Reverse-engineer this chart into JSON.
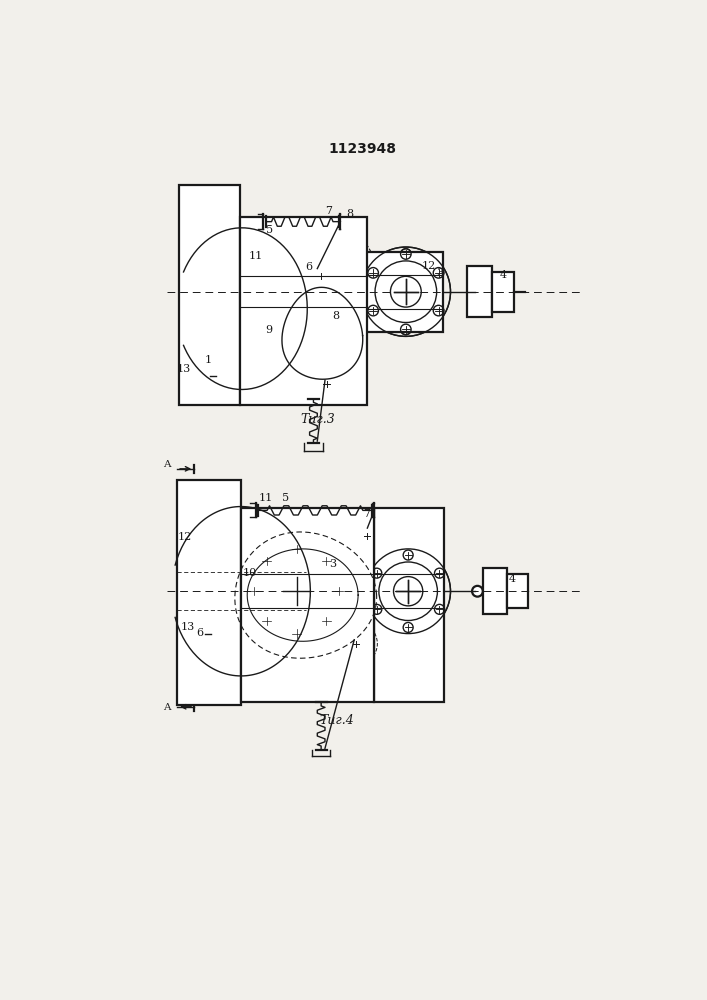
{
  "title": "1123948",
  "fig3_caption": "Τиг.3",
  "fig4_caption": "Τиг.4",
  "bg_color": "#f2f0eb",
  "line_color": "#1a1a1a"
}
